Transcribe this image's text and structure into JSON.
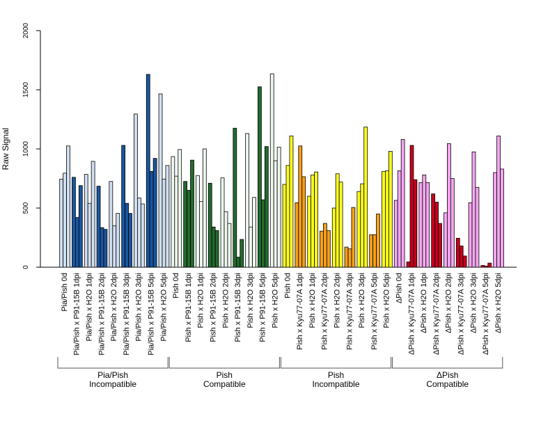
{
  "chart_data": {
    "type": "bar",
    "title": "",
    "ylabel": "Raw Signal",
    "xlabel": "",
    "ylim": [
      0,
      2000
    ],
    "yticks": [
      0,
      500,
      1000,
      1500,
      2000
    ],
    "bars_per_category": 3,
    "categories": [
      "Pia/Pish 0d",
      "Pia/Pish x P91-15B 1dpi",
      "Pia/Pish x H2O 1dpi",
      "Pia/Pish x P91-15B 2dpi",
      "Pia/Pish x H2O 2dpi",
      "Pia/Pish x P91-15B 3dpi",
      "Pia/Pish x H2O 3dpi",
      "Pia/Pish x P91-15B 5dpi",
      "Pia/Pish x H2O 5dpi",
      "Pish 0d",
      "Pish x P91-15B 1dpi",
      "Pish x H2O 1dpi",
      "Pish x P91-15B 2dpi",
      "Pish x H2O 2dpi",
      "Pish x P91-15B 3dpi",
      "Pish x H2O 3dpi",
      "Pish x P91-15B 5dpi",
      "Pish x H2O 5dpi",
      "Pish 0d",
      "Pish x Kyu77-07A 1dpi",
      "Pish x H2O 1dpi",
      "Pish x Kyu77-07A 2dpi",
      "Pish x H2O 2dpi",
      "Pish x Kyu77-07A 3dpi",
      "Pish x H2O 3dpi",
      "Pish x Kyu77-07A 5dpi",
      "Pish x H2O 5dpi",
      "ΔPish 0d",
      "ΔPish x Kyu77-07A 1dpi",
      "ΔPish x H2O 1dpi",
      "ΔPish x Kyu77-07A 2dpi",
      "ΔPish x H2O 2dpi",
      "ΔPish x Kyu77-07A 3dpi",
      "ΔPish x H2O 3dpi",
      "ΔPish x Kyu77-07A 5dpi",
      "ΔPish x H2O 5dpi"
    ],
    "values": [
      [
        745,
        795,
        1025
      ],
      [
        760,
        420,
        690
      ],
      [
        785,
        540,
        895
      ],
      [
        685,
        335,
        320
      ],
      [
        725,
        350,
        455
      ],
      [
        1030,
        540,
        455
      ],
      [
        1295,
        585,
        535
      ],
      [
        1630,
        810,
        920
      ],
      [
        1465,
        745,
        860
      ],
      [
        935,
        770,
        995
      ],
      [
        725,
        650,
        905
      ],
      [
        775,
        555,
        1000
      ],
      [
        710,
        340,
        310
      ],
      [
        755,
        470,
        370
      ],
      [
        1175,
        85,
        235
      ],
      [
        1130,
        340,
        590
      ],
      [
        1525,
        570,
        1020
      ],
      [
        1635,
        900,
        1015
      ],
      [
        700,
        860,
        1110
      ],
      [
        545,
        1025,
        765
      ],
      [
        600,
        780,
        805
      ],
      [
        305,
        370,
        310
      ],
      [
        500,
        790,
        720
      ],
      [
        170,
        155,
        505
      ],
      [
        640,
        705,
        1185
      ],
      [
        275,
        275,
        450
      ],
      [
        810,
        815,
        980
      ],
      [
        565,
        815,
        1080
      ],
      [
        45,
        1030,
        740
      ],
      [
        715,
        780,
        715
      ],
      [
        620,
        550,
        370
      ],
      [
        460,
        1045,
        750
      ],
      [
        245,
        180,
        95
      ],
      [
        545,
        975,
        675
      ],
      [
        15,
        10,
        35
      ],
      [
        800,
        1110,
        830
      ]
    ],
    "colors": [
      "#d0dff0",
      "#1a56a0",
      "#d0dff0",
      "#1a56a0",
      "#d0dff0",
      "#1a56a0",
      "#d0dff0",
      "#1a56a0",
      "#d0dff0",
      "#eef8ee",
      "#236b2e",
      "#eef8ee",
      "#236b2e",
      "#eef8ee",
      "#236b2e",
      "#eef8ee",
      "#236b2e",
      "#eef8ee",
      "#ffff1f",
      "#f5a01a",
      "#ffff1f",
      "#f5a01a",
      "#ffff1f",
      "#f5a01a",
      "#ffff1f",
      "#f5a01a",
      "#ffff1f",
      "#f4a6f0",
      "#c8001e",
      "#f4a6f0",
      "#c8001e",
      "#f4a6f0",
      "#c8001e",
      "#f4a6f0",
      "#c8001e",
      "#f4a6f0"
    ],
    "groups": [
      {
        "line1": "Pia/Pish",
        "line2": "Incompatible",
        "count": 9
      },
      {
        "line1": "Pish",
        "line2": "Compatible",
        "count": 9
      },
      {
        "line1": "Pish",
        "line2": "Incompatible",
        "count": 9
      },
      {
        "line1": "ΔPish",
        "line2": "Compatible",
        "count": 9
      }
    ]
  }
}
